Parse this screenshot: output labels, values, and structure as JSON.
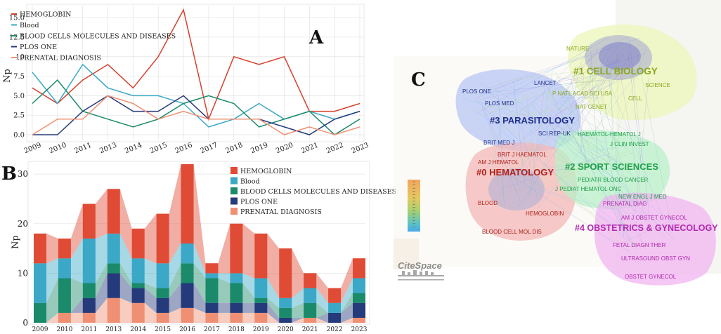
{
  "panels": {
    "a": "A",
    "b": "B",
    "c": "C"
  },
  "chart_data": [
    {
      "type": "line",
      "panel": "A",
      "ylabel": "Np",
      "x": [
        "2009",
        "2010",
        "2011",
        "2013",
        "2014",
        "2015",
        "2016",
        "2017",
        "2018",
        "2019",
        "2020",
        "2021",
        "2022",
        "2023"
      ],
      "ylim": [
        0,
        16
      ],
      "yticks": [
        "0.0",
        "2.5",
        "5.0",
        "7.5",
        "10",
        "12.5",
        "15.0"
      ],
      "legend_position": "top-left",
      "series": [
        {
          "name": "HEMOGLOBIN",
          "color": "#d7412d",
          "values": [
            6,
            4,
            7,
            9,
            6,
            10,
            16,
            2,
            10,
            9,
            10,
            3,
            3,
            4
          ]
        },
        {
          "name": "Blood",
          "color": "#3aa8c6",
          "values": [
            8,
            4,
            9,
            6,
            5,
            5,
            4,
            1,
            2,
            4,
            2,
            3,
            2,
            3
          ]
        },
        {
          "name": "BLOOD CELLS MOLECULES AND DISEASES",
          "color": "#1a8a6a",
          "values": [
            4,
            7,
            3,
            2,
            1,
            2,
            4,
            5,
            4,
            1,
            2,
            3,
            0,
            2
          ]
        },
        {
          "name": "PLOS ONE",
          "color": "#253a7a",
          "values": [
            0,
            0,
            3,
            5,
            3,
            3,
            5,
            2,
            2,
            2,
            1,
            0,
            2,
            3
          ]
        },
        {
          "name": "PRENATAL DIAGNOSIS",
          "color": "#ef9074",
          "values": [
            0,
            2,
            2,
            5,
            4,
            2,
            3,
            2,
            2,
            2,
            0,
            1,
            0,
            1
          ]
        }
      ]
    },
    {
      "type": "area",
      "stacked": true,
      "panel": "B",
      "ylabel": "Np",
      "x": [
        "2009",
        "2010",
        "2011",
        "2013",
        "2014",
        "2015",
        "2016",
        "2017",
        "2018",
        "2019",
        "2020",
        "2021",
        "2022",
        "2023"
      ],
      "ylim": [
        0,
        32
      ],
      "yticks": [
        "0",
        "10",
        "20",
        "30"
      ],
      "legend_position": "top-right",
      "series": [
        {
          "name": "PRENATAL DIAGNOSIS",
          "color": "#ef9074",
          "values": [
            0,
            2,
            2,
            5,
            4,
            2,
            3,
            2,
            2,
            2,
            0,
            1,
            0,
            1
          ]
        },
        {
          "name": "PLOS ONE",
          "color": "#253a7a",
          "values": [
            0,
            0,
            3,
            5,
            3,
            3,
            5,
            2,
            2,
            2,
            1,
            0,
            2,
            3
          ]
        },
        {
          "name": "BLOOD CELLS MOLECULES AND DISEASES",
          "color": "#1a8a6a",
          "values": [
            4,
            7,
            3,
            2,
            1,
            2,
            4,
            5,
            4,
            1,
            2,
            3,
            0,
            2
          ]
        },
        {
          "name": "Blood",
          "color": "#3aa8c6",
          "values": [
            8,
            4,
            9,
            6,
            5,
            5,
            4,
            1,
            2,
            4,
            2,
            3,
            2,
            3
          ]
        },
        {
          "name": "HEMOGLOBIN",
          "color": "#e04b35",
          "values": [
            6,
            4,
            7,
            9,
            6,
            10,
            16,
            2,
            10,
            9,
            10,
            3,
            3,
            4
          ]
        }
      ],
      "legend_order": [
        "HEMOGLOBIN",
        "Blood",
        "BLOOD CELLS MOLECULES AND DISEASES",
        "PLOS ONE",
        "PRENATAL DIAGNOSIS"
      ]
    }
  ],
  "network": {
    "clusters": [
      {
        "label": "#0 HEMATOLOGY",
        "color": "#b0201a"
      },
      {
        "label": "#1 CELL BIOLOGY",
        "color": "#8aa81e"
      },
      {
        "label": "#2 SPORT SCIENCES",
        "color": "#1fa04a"
      },
      {
        "label": "#3 PARASITOLOGY",
        "color": "#1f2f8f"
      },
      {
        "label": "#4 OBSTETRICS & GYNECOLOGY",
        "color": "#b02ab0"
      }
    ],
    "journals": [
      {
        "label": "NATURE",
        "color": "#8aa81e"
      },
      {
        "label": "SCIENCE",
        "color": "#8aa81e"
      },
      {
        "label": "CELL",
        "color": "#8aa81e"
      },
      {
        "label": "P NATL ACAD SCI USA",
        "color": "#8aa81e"
      },
      {
        "label": "NAT GENET",
        "color": "#8aa81e"
      },
      {
        "label": "LANCET",
        "color": "#1f2f8f"
      },
      {
        "label": "PLOS ONE",
        "color": "#1f2f8f"
      },
      {
        "label": "PLOS MED",
        "color": "#1f2f8f"
      },
      {
        "label": "SCI REP-UK",
        "color": "#1f2f8f"
      },
      {
        "label": "BRIT MED J",
        "color": "#1f2f8f"
      },
      {
        "label": "HAEMATOL-HEMATOL J",
        "color": "#1fa04a"
      },
      {
        "label": "J CLIN INVEST",
        "color": "#1fa04a"
      },
      {
        "label": "PEDIATR BLOOD CANCER",
        "color": "#1fa04a"
      },
      {
        "label": "J PEDIAT HEMATOL ONC",
        "color": "#1fa04a"
      },
      {
        "label": "NEW ENGL J MED",
        "color": "#1fa04a"
      },
      {
        "label": "BRIT J HAEMATOL",
        "color": "#b0201a"
      },
      {
        "label": "AM J HEMATOL",
        "color": "#b0201a"
      },
      {
        "label": "BLOOD",
        "color": "#b0201a"
      },
      {
        "label": "HEMOGLOBIN",
        "color": "#b0201a"
      },
      {
        "label": "BLOOD CELL MOL DIS",
        "color": "#b0201a"
      },
      {
        "label": "PRENATAL DIAG",
        "color": "#b02ab0"
      },
      {
        "label": "AM J OBSTET GYNECOL",
        "color": "#b02ab0"
      },
      {
        "label": "FETAL DIAGN THER",
        "color": "#b02ab0"
      },
      {
        "label": "ULTRASOUND OBST GYN",
        "color": "#b02ab0"
      },
      {
        "label": "OBSTET GYNECOL",
        "color": "#b02ab0"
      }
    ],
    "logo": "CiteSpace"
  }
}
